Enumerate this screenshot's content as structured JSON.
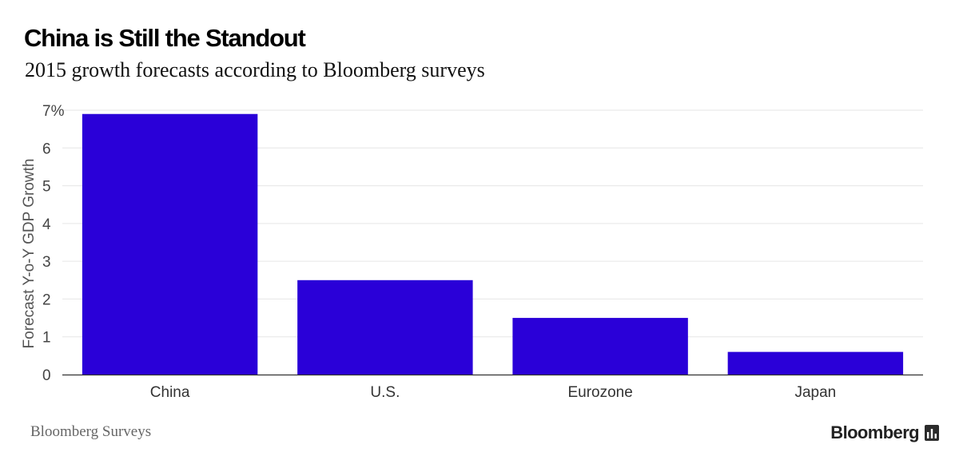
{
  "header": {
    "title": "China is Still the Standout",
    "subtitle": "2015 growth forecasts according to Bloomberg surveys"
  },
  "footer": {
    "source": "Bloomberg Surveys",
    "brand": "Bloomberg"
  },
  "colors": {
    "bar": "#2a00d8",
    "grid": "#e6e6e6",
    "axis": "#333333"
  },
  "icons": {
    "brand": "bloomberg-terminal-icon"
  },
  "chart_data": {
    "type": "bar",
    "categories": [
      "China",
      "U.S.",
      "Eurozone",
      "Japan"
    ],
    "values": [
      6.9,
      2.5,
      1.5,
      0.6
    ],
    "xlabel": "",
    "ylabel": "Forecast Y-o-Y GDP Growth",
    "ylim": [
      0,
      7
    ],
    "yticks": [
      0,
      1,
      2,
      3,
      4,
      5,
      6,
      7
    ],
    "ytick_labels": [
      "0",
      "1",
      "2",
      "3",
      "4",
      "5",
      "6",
      "7%"
    ],
    "grid": true,
    "legend": "none"
  }
}
